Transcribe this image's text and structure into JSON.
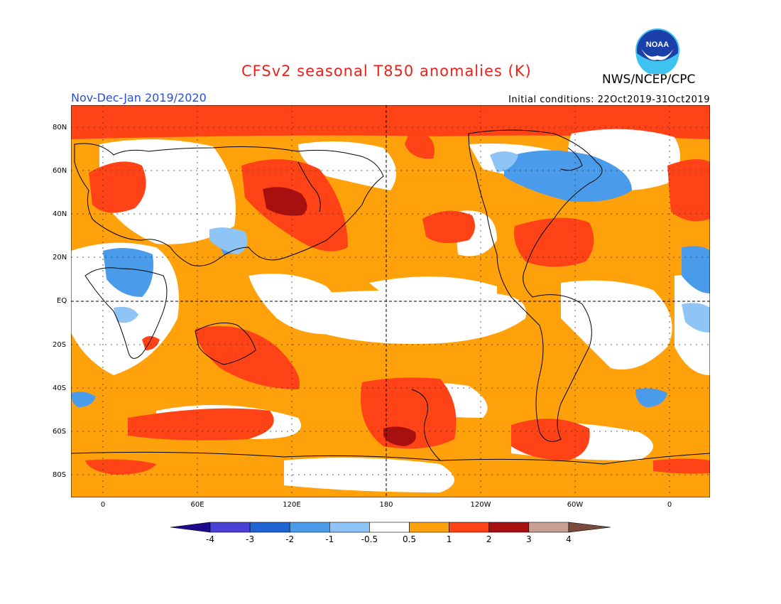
{
  "title": "CFSv2 seasonal T850 anomalies (K)",
  "period": "Nov-Dec-Jan 2019/2020",
  "initial_conditions": "Initial conditions: 22Oct2019-31Oct2019",
  "agency": "NWS/NCEP/CPC",
  "logo": {
    "text": "NOAA",
    "colors": {
      "sky": "#1a3fa8",
      "sea": "#3ec3f0",
      "bird": "#ffffff"
    }
  },
  "lat_labels": [
    "80N",
    "60N",
    "40N",
    "20N",
    "EQ",
    "20S",
    "40S",
    "60S",
    "80S"
  ],
  "lon_labels": [
    "0",
    "60E",
    "120E",
    "180",
    "120W",
    "60W",
    "0"
  ],
  "legend": {
    "labels": [
      "-4",
      "-3",
      "-2",
      "-1",
      "-0.5",
      "0.5",
      "1",
      "2",
      "3",
      "4"
    ],
    "colors": [
      "#1e0a8c",
      "#4a3fd6",
      "#1e64d4",
      "#4a9bea",
      "#8fc4f6",
      "#ffffff",
      "#ffa10a",
      "#ff4316",
      "#a81010",
      "#c8a090",
      "#7a4a3a"
    ]
  },
  "map_colors": {
    "ocean_base": "#ffa10a",
    "neutral": "#ffffff",
    "warm": "#ff4316",
    "very_warm": "#a81010",
    "cool": "#4a9bea",
    "slightly_cool": "#8fc4f6",
    "coast": "#000000"
  }
}
